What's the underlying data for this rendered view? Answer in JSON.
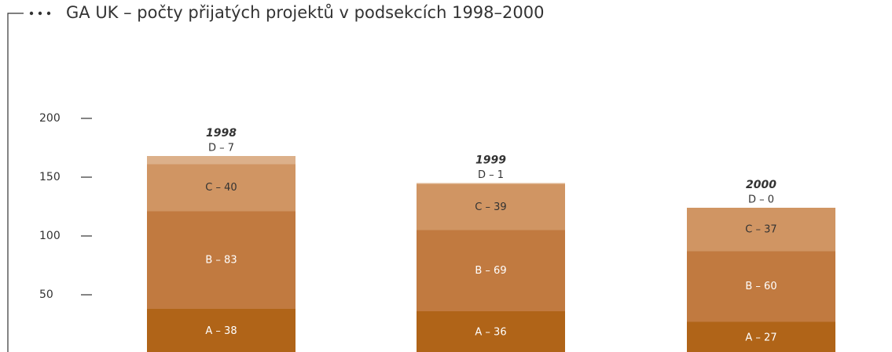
{
  "chart_data": {
    "type": "stacked_bar",
    "title": "GA UK – počty přijatých projektů v podsekcích 1998–2000",
    "categories": [
      "1998",
      "1999",
      "2000"
    ],
    "series": [
      {
        "name": "A",
        "color": "#b06418",
        "label_color": "#ffffff",
        "values": [
          38,
          36,
          27
        ],
        "value_labels": [
          "A – 38",
          "A – 36",
          "A – 27"
        ]
      },
      {
        "name": "B",
        "color": "#c17a40",
        "label_color": "#ffffff",
        "values": [
          83,
          69,
          60
        ],
        "value_labels": [
          "B – 83",
          "B – 69",
          "B – 60"
        ]
      },
      {
        "name": "C",
        "color": "#d09563",
        "label_color": "#333333",
        "values": [
          40,
          39,
          37
        ],
        "value_labels": [
          "C – 40",
          "C – 39",
          "C – 37"
        ]
      },
      {
        "name": "D",
        "color": "#dcb08a",
        "label_color": "#333333",
        "values": [
          7,
          1,
          0
        ],
        "value_labels": [
          "D – 7",
          "D – 1",
          "D – 0"
        ]
      }
    ],
    "ylim": [
      0,
      280
    ],
    "yticks": [
      50,
      100,
      150,
      200
    ]
  }
}
